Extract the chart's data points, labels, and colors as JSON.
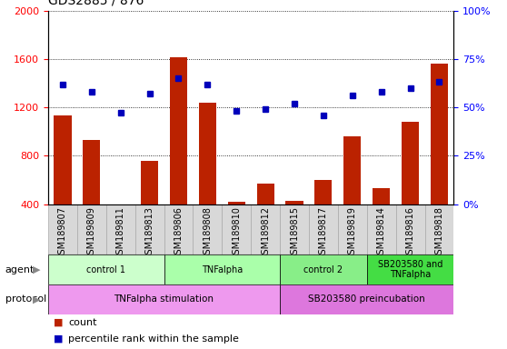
{
  "title": "GDS2885 / 876",
  "samples": [
    "GSM189807",
    "GSM189809",
    "GSM189811",
    "GSM189813",
    "GSM189806",
    "GSM189808",
    "GSM189810",
    "GSM189812",
    "GSM189815",
    "GSM189817",
    "GSM189819",
    "GSM189814",
    "GSM189816",
    "GSM189818"
  ],
  "counts": [
    1130,
    930,
    370,
    760,
    1610,
    1240,
    420,
    570,
    430,
    600,
    960,
    530,
    1080,
    1560
  ],
  "percentiles": [
    62,
    58,
    47,
    57,
    65,
    62,
    48,
    49,
    52,
    46,
    56,
    58,
    60,
    63
  ],
  "ylim_left": [
    400,
    2000
  ],
  "ylim_right": [
    0,
    100
  ],
  "yticks_left": [
    400,
    800,
    1200,
    1600,
    2000
  ],
  "yticks_right": [
    0,
    25,
    50,
    75,
    100
  ],
  "bar_color": "#bb2200",
  "dot_color": "#0000bb",
  "agent_groups": [
    {
      "label": "control 1",
      "start": 0,
      "end": 4,
      "color": "#ccffcc"
    },
    {
      "label": "TNFalpha",
      "start": 4,
      "end": 8,
      "color": "#aaffaa"
    },
    {
      "label": "control 2",
      "start": 8,
      "end": 11,
      "color": "#88ee88"
    },
    {
      "label": "SB203580 and\nTNFalpha",
      "start": 11,
      "end": 14,
      "color": "#44dd44"
    }
  ],
  "protocol_groups": [
    {
      "label": "TNFalpha stimulation",
      "start": 0,
      "end": 8,
      "color": "#ee99ee"
    },
    {
      "label": "SB203580 preincubation",
      "start": 8,
      "end": 14,
      "color": "#dd77dd"
    }
  ],
  "legend_count_color": "#bb2200",
  "legend_dot_color": "#0000bb",
  "bg_color": "#ffffff",
  "grid_color": "#000000",
  "title_fontsize": 10,
  "tick_fontsize": 8,
  "label_fontsize": 8,
  "xticklabel_fontsize": 7,
  "xtick_bg_color": "#d8d8d8"
}
